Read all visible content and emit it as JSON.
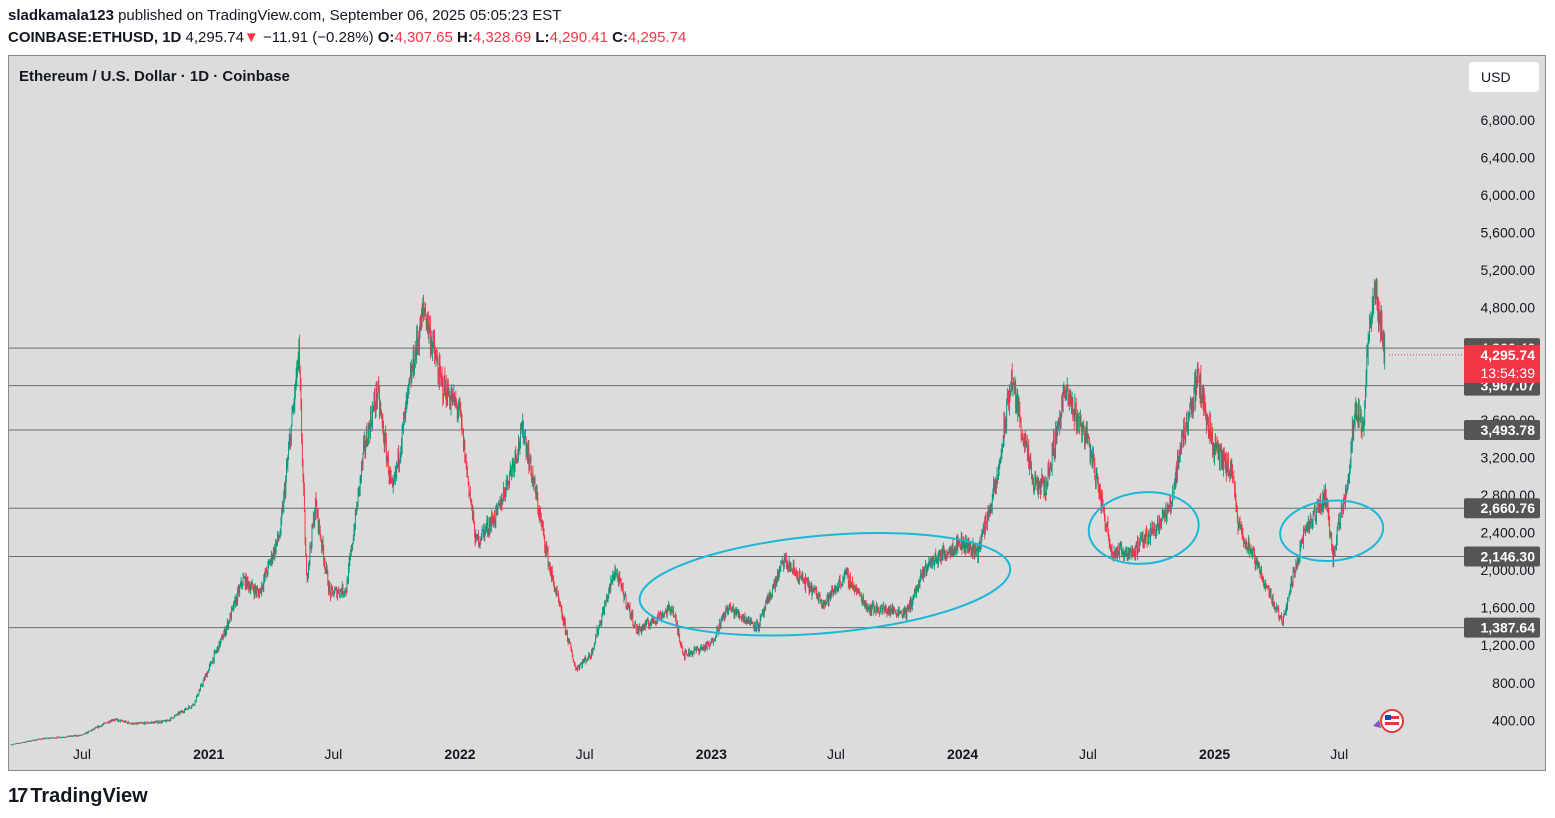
{
  "header": {
    "author": "sladkamala123",
    "published_text": "published on TradingView.com, September 06, 2025 05:05:23 EST",
    "symbol": "COINBASE:ETHUSD, 1D",
    "last": "4,295.74",
    "change_arrow": "▼",
    "change": "−11.91 (−0.28%)",
    "o_label": "O:",
    "o": "4,307.65",
    "h_label": "H:",
    "h": "4,328.69",
    "l_label": "L:",
    "l": "4,290.41",
    "c_label": "C:",
    "c": "4,295.74"
  },
  "chart_title": "Ethereum / U.S. Dollar · 1D · Coinbase",
  "currency_button": "USD",
  "footer": {
    "logo_mark": "17",
    "logo_text": "TradingView"
  },
  "colors": {
    "up": "#089981",
    "down": "#f23645",
    "annotation": "#1ab8d6",
    "background": "#dcdcdc"
  },
  "chart_data": {
    "type": "candlestick",
    "title": "Ethereum / U.S. Dollar · 1D · Coinbase",
    "ylim": [
      0,
      7000
    ],
    "y_ticks": [
      400,
      800,
      1200,
      1600,
      2000,
      2400,
      2800,
      3200,
      3600,
      4800,
      5200,
      5600,
      6000,
      6400,
      6800
    ],
    "y_tick_labels": [
      "400.00",
      "800.00",
      "1,200.00",
      "1,600.00",
      "2,000.00",
      "2,400.00",
      "2,800.00",
      "3,200.00",
      "3,600.00",
      "4,800.00",
      "5,200.00",
      "5,600.00",
      "6,000.00",
      "6,400.00",
      "6,800.00"
    ],
    "x_ticks": [
      {
        "label": "Jul",
        "date": "2020-07-01",
        "bold": false
      },
      {
        "label": "2021",
        "date": "2021-01-01",
        "bold": true
      },
      {
        "label": "Jul",
        "date": "2021-07-01",
        "bold": false
      },
      {
        "label": "2022",
        "date": "2022-01-01",
        "bold": true
      },
      {
        "label": "Jul",
        "date": "2022-07-01",
        "bold": false
      },
      {
        "label": "2023",
        "date": "2023-01-01",
        "bold": true
      },
      {
        "label": "Jul",
        "date": "2023-07-01",
        "bold": false
      },
      {
        "label": "2024",
        "date": "2024-01-01",
        "bold": true
      },
      {
        "label": "Jul",
        "date": "2024-07-01",
        "bold": false
      },
      {
        "label": "2025",
        "date": "2025-01-01",
        "bold": true
      },
      {
        "label": "Jul",
        "date": "2025-07-01",
        "bold": false
      }
    ],
    "horizontal_levels": [
      {
        "value": 4366.46,
        "label": "4,366.46"
      },
      {
        "value": 3967.07,
        "label": "3,967.07"
      },
      {
        "value": 3493.78,
        "label": "3,493.78"
      },
      {
        "value": 2660.76,
        "label": "2,660.76"
      },
      {
        "value": 2146.3,
        "label": "2,146.30"
      },
      {
        "value": 1387.64,
        "label": "1,387.64"
      }
    ],
    "last_price": {
      "value": 4295.74,
      "label": "4,295.74",
      "countdown": "13:54:39"
    },
    "price_path": [
      [
        "2020-03-20",
        140
      ],
      [
        "2020-05-01",
        200
      ],
      [
        "2020-07-01",
        240
      ],
      [
        "2020-08-15",
        410
      ],
      [
        "2020-09-15",
        360
      ],
      [
        "2020-11-01",
        390
      ],
      [
        "2020-12-10",
        570
      ],
      [
        "2021-01-10",
        1100
      ],
      [
        "2021-01-25",
        1350
      ],
      [
        "2021-02-20",
        1900
      ],
      [
        "2021-03-15",
        1750
      ],
      [
        "2021-04-15",
        2400
      ],
      [
        "2021-05-12",
        4300
      ],
      [
        "2021-05-23",
        1900
      ],
      [
        "2021-06-05",
        2700
      ],
      [
        "2021-06-26",
        1750
      ],
      [
        "2021-07-20",
        1800
      ],
      [
        "2021-08-15",
        3300
      ],
      [
        "2021-09-03",
        3900
      ],
      [
        "2021-09-25",
        2800
      ],
      [
        "2021-10-25",
        4200
      ],
      [
        "2021-11-10",
        4800
      ],
      [
        "2021-12-04",
        4000
      ],
      [
        "2021-12-31",
        3700
      ],
      [
        "2022-01-24",
        2300
      ],
      [
        "2022-02-24",
        2600
      ],
      [
        "2022-04-03",
        3500
      ],
      [
        "2022-05-12",
        2000
      ],
      [
        "2022-06-18",
        950
      ],
      [
        "2022-07-10",
        1100
      ],
      [
        "2022-08-14",
        2000
      ],
      [
        "2022-09-15",
        1350
      ],
      [
        "2022-11-05",
        1600
      ],
      [
        "2022-11-22",
        1100
      ],
      [
        "2022-12-30",
        1200
      ],
      [
        "2023-01-25",
        1600
      ],
      [
        "2023-03-10",
        1400
      ],
      [
        "2023-04-16",
        2100
      ],
      [
        "2023-06-15",
        1650
      ],
      [
        "2023-07-15",
        1950
      ],
      [
        "2023-08-17",
        1600
      ],
      [
        "2023-10-12",
        1550
      ],
      [
        "2023-11-10",
        2050
      ],
      [
        "2023-12-28",
        2300
      ],
      [
        "2024-01-23",
        2200
      ],
      [
        "2024-02-20",
        2950
      ],
      [
        "2024-03-12",
        4050
      ],
      [
        "2024-04-13",
        2900
      ],
      [
        "2024-05-01",
        2900
      ],
      [
        "2024-05-28",
        3900
      ],
      [
        "2024-07-01",
        3400
      ],
      [
        "2024-08-05",
        2200
      ],
      [
        "2024-09-06",
        2200
      ],
      [
        "2024-10-28",
        2650
      ],
      [
        "2024-11-12",
        3300
      ],
      [
        "2024-12-08",
        4050
      ],
      [
        "2024-12-31",
        3300
      ],
      [
        "2025-01-28",
        3000
      ],
      [
        "2025-02-03",
        2500
      ],
      [
        "2025-03-10",
        1950
      ],
      [
        "2025-04-09",
        1450
      ],
      [
        "2025-05-09",
        2350
      ],
      [
        "2025-06-11",
        2800
      ],
      [
        "2025-06-22",
        2150
      ],
      [
        "2025-07-14",
        3000
      ],
      [
        "2025-07-25",
        3800
      ],
      [
        "2025-08-05",
        3500
      ],
      [
        "2025-08-14",
        4700
      ],
      [
        "2025-08-24",
        4900
      ],
      [
        "2025-09-06",
        4295.74
      ]
    ],
    "annotations": [
      {
        "type": "ellipse",
        "label": "",
        "center": [
          "2023-06-15",
          1850
        ],
        "rx_days": 270,
        "ry": 520
      },
      {
        "type": "ellipse",
        "label": "",
        "center": [
          "2024-09-20",
          2450
        ],
        "rx_days": 80,
        "ry": 380
      },
      {
        "type": "ellipse",
        "label": "",
        "center": [
          "2025-06-20",
          2420
        ],
        "rx_days": 75,
        "ry": 320
      }
    ]
  }
}
